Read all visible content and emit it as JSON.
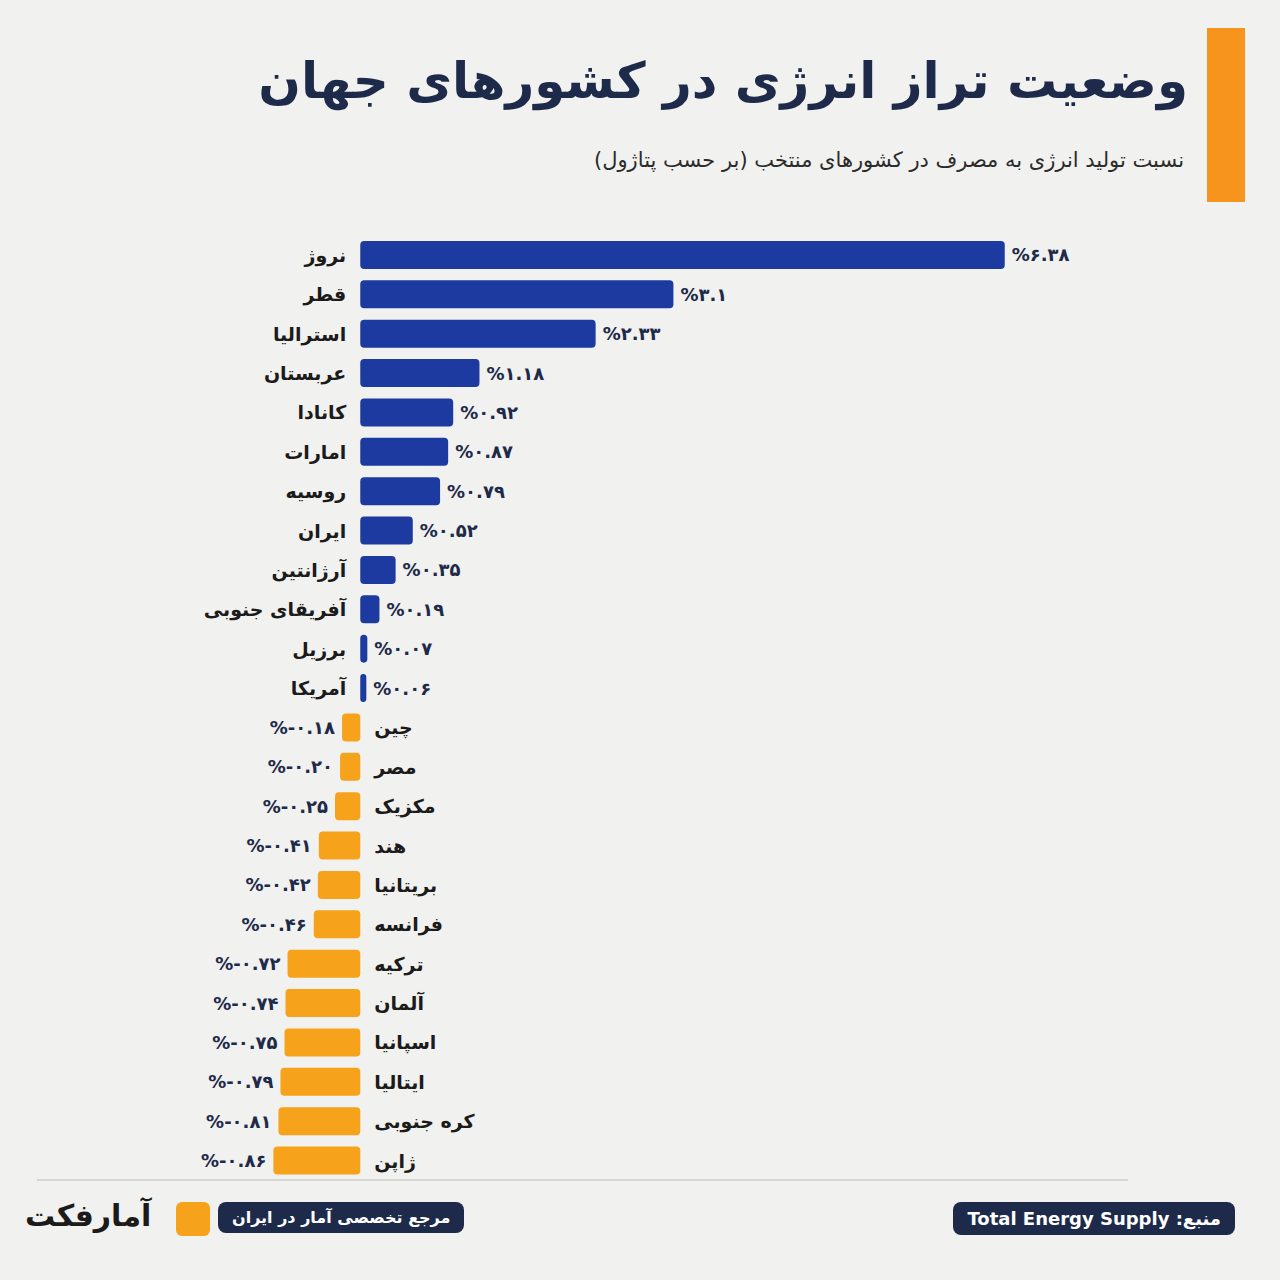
{
  "chart_data": {
    "type": "bar",
    "orientation": "horizontal",
    "title": "وضعیت تراز انرژی در کشورهای جهان",
    "subtitle": "نسبت تولید انرژی به مصرف در کشورهای منتخب (بر حسب پتاژول)",
    "source": "منبع: Total Energy Supply",
    "tagline": "مرجع تخصصی آمار در ایران",
    "logo": "آمارفکت",
    "categories": [
      "نروژ",
      "قطر",
      "استرالیا",
      "عربستان",
      "کانادا",
      "امارات",
      "روسیه",
      "ایران",
      "آرژانتین",
      "آفریقای جنوبی",
      "برزیل",
      "آمریکا",
      "چین",
      "مصر",
      "مکزیک",
      "هند",
      "بریتانیا",
      "فرانسه",
      "ترکیه",
      "آلمان",
      "اسپانیا",
      "ایتالیا",
      "کره جنوبی",
      "ژاپن"
    ],
    "values": [
      6.38,
      3.1,
      2.33,
      1.18,
      0.92,
      0.87,
      0.79,
      0.52,
      0.35,
      0.19,
      0.07,
      0.06,
      -0.18,
      -0.2,
      -0.25,
      -0.41,
      -0.42,
      -0.46,
      -0.72,
      -0.74,
      -0.75,
      -0.79,
      -0.81,
      -0.86
    ],
    "value_labels": [
      "%۶.۳۸",
      "%۳.۱",
      "%۲.۳۳",
      "%۱.۱۸",
      "%۰.۹۲",
      "%۰.۸۷",
      "%۰.۷۹",
      "%۰.۵۲",
      "%۰.۳۵",
      "%۰.۱۹",
      "%۰.۰۷",
      "%۰.۰۶",
      "%-۰.۱۸",
      "%-۰.۲۰",
      "%-۰.۲۵",
      "%-۰.۴۱",
      "%-۰.۴۲",
      "%-۰.۴۶",
      "%-۰.۷۲",
      "%-۰.۷۴",
      "%-۰.۷۵",
      "%-۰.۷۹",
      "%-۰.۸۱",
      "%-۰.۸۶"
    ],
    "colors": [
      "#1c3aa0",
      "#1c3aa0",
      "#1c3aa0",
      "#1c3aa0",
      "#1c3aa0",
      "#1c3aa0",
      "#1c3aa0",
      "#1c3aa0",
      "#1c3aa0",
      "#1c3aa0",
      "#1c3aa0",
      "#1c3aa0",
      "#f7a21b",
      "#f7a21b",
      "#f7a21b",
      "#f7a21b",
      "#f7a21b",
      "#f7a21b",
      "#f7a21b",
      "#f7a21b",
      "#f7a21b",
      "#f7a21b",
      "#f7a21b",
      "#f7a21b"
    ],
    "xlim": [
      -3.2,
      7.6
    ],
    "data_labels": true,
    "tick_labels": false
  }
}
